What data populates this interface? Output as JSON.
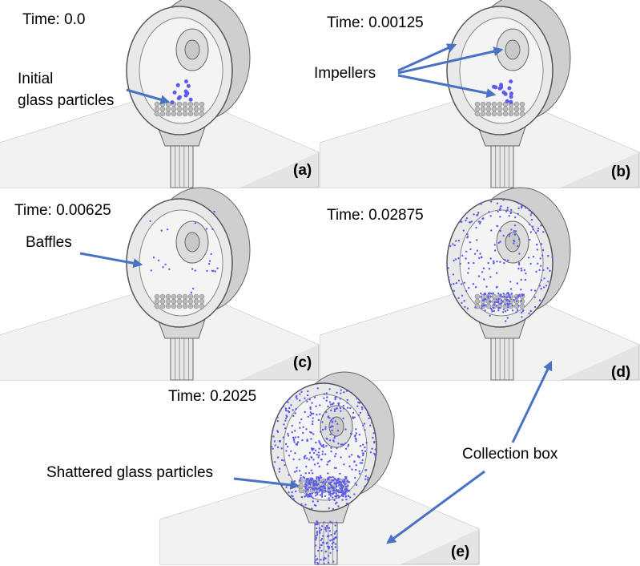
{
  "panels": [
    {
      "time": "Time: 0.0",
      "label": "(a)"
    },
    {
      "time": "Time: 0.00125",
      "label": "(b)"
    },
    {
      "time": "Time: 0.00625",
      "label": "(c)"
    },
    {
      "time": "Time: 0.02875",
      "label": "(d)"
    },
    {
      "time": "Time: 0.2025",
      "label": "(e)"
    }
  ],
  "annotations": {
    "initial": [
      "Initial",
      "glass particles"
    ],
    "impellers": "Impellers",
    "baffles": "Baffles",
    "shattered": "Shattered glass particles",
    "collection": "Collection box"
  }
}
